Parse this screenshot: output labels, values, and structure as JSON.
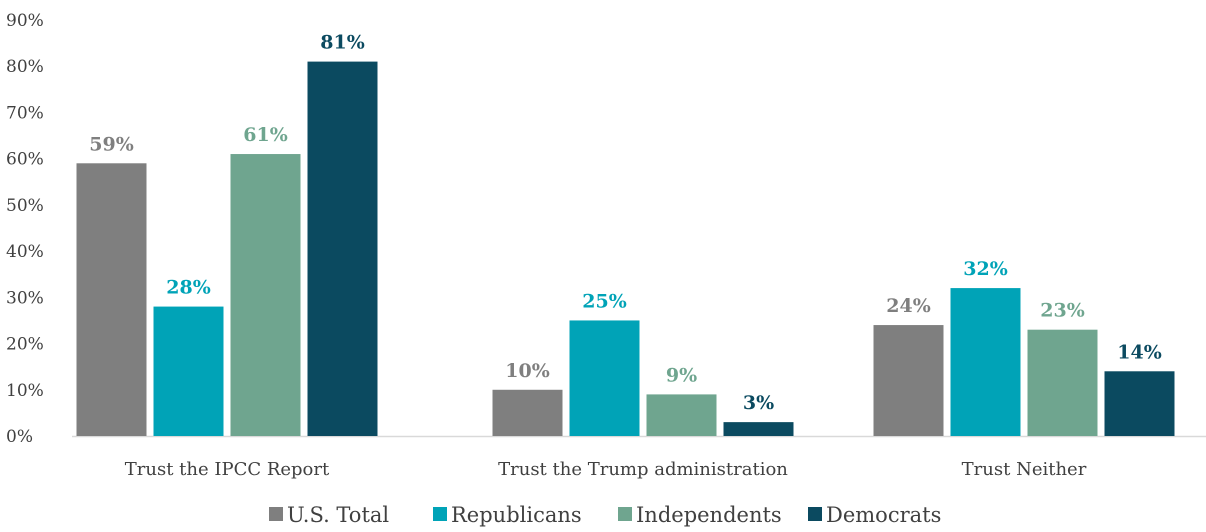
{
  "chart_data": {
    "type": "bar",
    "title": "",
    "xlabel": "",
    "ylabel": "",
    "ylim": [
      0,
      90
    ],
    "y_ticks": [
      "0%",
      "10%",
      "20%",
      "30%",
      "40%",
      "50%",
      "60%",
      "70%",
      "80%",
      "90%"
    ],
    "y_tick_values": [
      0,
      10,
      20,
      30,
      40,
      50,
      60,
      70,
      80,
      90
    ],
    "categories": [
      "Trust the IPCC Report",
      "Trust the Trump administration",
      "Trust Neither"
    ],
    "series": [
      {
        "name": "U.S. Total",
        "color": "#7f7f7f",
        "values": [
          59,
          10,
          24
        ],
        "labels": [
          "59%",
          "10%",
          "24%"
        ]
      },
      {
        "name": "Republicans",
        "color": "#00a3b7",
        "values": [
          28,
          25,
          32
        ],
        "labels": [
          "28%",
          "25%",
          "32%"
        ]
      },
      {
        "name": "Independents",
        "color": "#6fa58f",
        "values": [
          61,
          9,
          23
        ],
        "labels": [
          "61%",
          "9%",
          "23%"
        ]
      },
      {
        "name": "Democrats",
        "color": "#0b4a60",
        "values": [
          81,
          3,
          14
        ],
        "labels": [
          "81%",
          "3%",
          "14%"
        ]
      }
    ],
    "grid": false,
    "legend_position": "bottom"
  }
}
